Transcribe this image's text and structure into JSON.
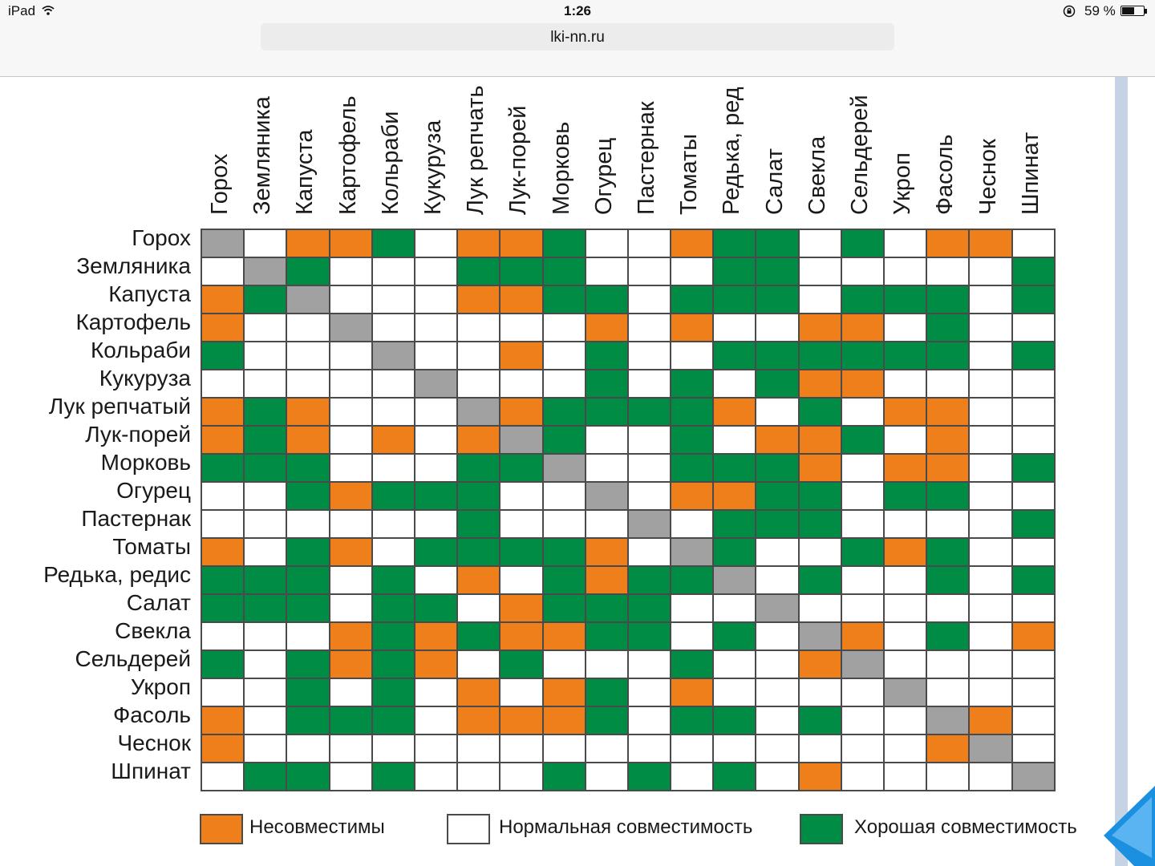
{
  "status_bar": {
    "device": "iPad",
    "time": "1:26",
    "battery": "59 %",
    "battery_level": 0.59,
    "icons": [
      "wifi-icon",
      "orientation-lock-icon",
      "battery-icon"
    ]
  },
  "browser": {
    "url": "lki-nn.ru"
  },
  "table": {
    "column_headers": [
      "Горох",
      "Земляника",
      "Капуста",
      "Картофель",
      "Кольраби",
      "Кукуруза",
      "Лук репчать",
      "Лук-порей",
      "Морковь",
      "Огурец",
      "Пастернак",
      "Томаты",
      "Редька, ред",
      "Салат",
      "Свекла",
      "Сельдерей",
      "Укроп",
      "Фасоль",
      "Чеснок",
      "Шпинат"
    ],
    "row_headers": [
      "Горох",
      "Земляника",
      "Капуста",
      "Картофель",
      "Кольраби",
      "Кукуруза",
      "Лук репчатый",
      "Лук-порей",
      "Морковь",
      "Огурец",
      "Пастернак",
      "Томаты",
      "Редька, редис",
      "Салат",
      "Свекла",
      "Сельдерей",
      "Укроп",
      "Фасоль",
      "Чеснок",
      "Шпинат"
    ],
    "cell_codes": {
      "G": "good compatibility",
      "O": "incompatible",
      "W": "normal compatibility",
      "X": "same crop"
    },
    "cells": [
      "XWOOGWOOGWWOGGWGWOOW",
      "WXGWWWGGGWWWGGWWWWWG",
      "OGXWWWOOGGWGGGWGGGWG",
      "OWWXWWWWWOWOWWOOWGWW",
      "GWWWXWWOWGWWGGGGGGWG",
      "WWWWWXWWWGWGWGOOWWWW",
      "OGOWWWXOGGGGOWGWOOWW",
      "OGOWOWOXGWWGWOOGWOWW",
      "GGGWWWGGXWWGGGOWOOWG",
      "WWGOGGGWWXWOOGGWGGWW",
      "WWWWWWGWWWXWGGGWWWWG",
      "OWGOWGGGGOWXGWWGOGWW",
      "GGGWGWOWGOGGXWGWWGWG",
      "GGGWGGWOGGGWWXWWWWWW",
      "WWWOGOGOOGGWGWXOWGWO",
      "GWGOGOWGWWWGWWOXWWWW",
      "WWGWGWOWOGWOWWWWXWWW",
      "OWGGGWOOOGWGGWGWWXOW",
      "OWWWWWWWWWWWWWWWWOXW",
      "WGGWGWWWGWGWGWOWWWWX"
    ]
  },
  "legend": {
    "items": [
      {
        "label": "Несовместимы",
        "color": "#ef7f1a"
      },
      {
        "label": "Нормальная совместимость",
        "color": "#ffffff"
      },
      {
        "label": "Хорошая совместимость",
        "color": "#008c45"
      }
    ]
  },
  "colors": {
    "good": "#008c45",
    "incompatible": "#ef7f1a",
    "normal": "#ffffff",
    "same": "#a1a1a1"
  }
}
